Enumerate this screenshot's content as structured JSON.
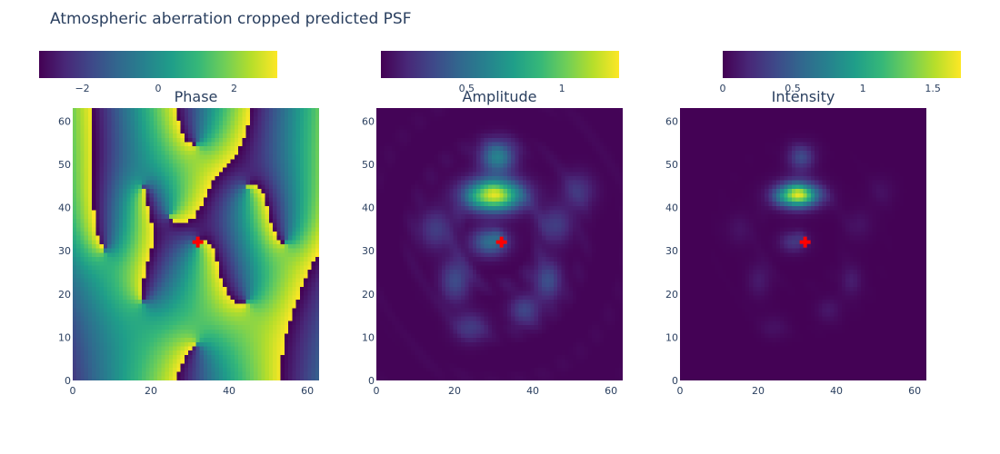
{
  "figure": {
    "title": "Atmospheric aberration cropped predicted PSF"
  },
  "colors": {
    "marker": "#ff0000",
    "text": "#2a3f5f",
    "viridis": [
      "#440154",
      "#482878",
      "#3e4989",
      "#31688e",
      "#26828e",
      "#1f9e89",
      "#35b779",
      "#6ece58",
      "#b5de2b",
      "#fde725"
    ]
  },
  "chart_data": [
    {
      "type": "heatmap",
      "title": "Phase",
      "xlim": [
        0,
        63
      ],
      "ylim": [
        0,
        63
      ],
      "xticks": [
        "0",
        "20",
        "40",
        "60"
      ],
      "yticks": [
        "0",
        "10",
        "20",
        "30",
        "40",
        "50",
        "60"
      ],
      "colorbar": {
        "range": [
          -3.14,
          3.14
        ],
        "ticks": [
          -2,
          0,
          2
        ],
        "tick_labels": [
          "−2",
          "0",
          "2"
        ]
      },
      "marker": {
        "x": 32,
        "y": 32,
        "symbol": "cross"
      }
    },
    {
      "type": "heatmap",
      "title": "Amplitude",
      "xlim": [
        0,
        63
      ],
      "ylim": [
        0,
        63
      ],
      "xticks": [
        "0",
        "20",
        "40",
        "60"
      ],
      "yticks": [
        "0",
        "10",
        "20",
        "30",
        "40",
        "50",
        "60"
      ],
      "colorbar": {
        "range": [
          0.05,
          1.3
        ],
        "ticks": [
          0.5,
          1
        ],
        "tick_labels": [
          "0.5",
          "1"
        ]
      },
      "marker": {
        "x": 32,
        "y": 32,
        "symbol": "cross"
      }
    },
    {
      "type": "heatmap",
      "title": "Intensity",
      "xlim": [
        0,
        63
      ],
      "ylim": [
        0,
        63
      ],
      "xticks": [
        "0",
        "20",
        "40",
        "60"
      ],
      "yticks": [
        "0",
        "10",
        "20",
        "30",
        "40",
        "50",
        "60"
      ],
      "colorbar": {
        "range": [
          0,
          1.7
        ],
        "ticks": [
          0,
          0.5,
          1,
          1.5
        ],
        "tick_labels": [
          "0",
          "0.5",
          "1",
          "1.5"
        ]
      },
      "marker": {
        "x": 32,
        "y": 32,
        "symbol": "cross"
      }
    }
  ]
}
